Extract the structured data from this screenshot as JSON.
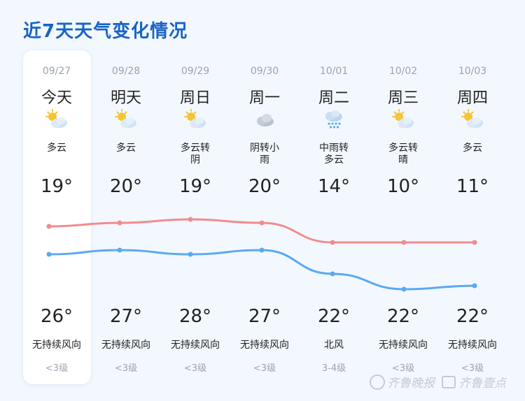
{
  "title": "近7天天气变化情况",
  "days": [
    {
      "date": "09/27",
      "weekday": "今天",
      "icon": "partly-cloudy-icon",
      "cond": [
        "多云"
      ],
      "high": "19°",
      "low": "26°",
      "wind": "无持续风向",
      "level": "<3级",
      "high_val": 19,
      "low_val": 26
    },
    {
      "date": "09/28",
      "weekday": "明天",
      "icon": "partly-cloudy-icon",
      "cond": [
        "多云"
      ],
      "high": "20°",
      "low": "27°",
      "wind": "无持续风向",
      "level": "<3级",
      "high_val": 20,
      "low_val": 27
    },
    {
      "date": "09/29",
      "weekday": "周日",
      "icon": "partly-cloudy-icon",
      "cond": [
        "多云转",
        "阴"
      ],
      "high": "19°",
      "low": "28°",
      "wind": "无持续风向",
      "level": "<3级",
      "high_val": 19,
      "low_val": 28
    },
    {
      "date": "09/30",
      "weekday": "周一",
      "icon": "cloudy-icon",
      "cond": [
        "阴转小",
        "雨"
      ],
      "high": "20°",
      "low": "27°",
      "wind": "无持续风向",
      "level": "<3级",
      "high_val": 20,
      "low_val": 27
    },
    {
      "date": "10/01",
      "weekday": "周二",
      "icon": "rain-icon",
      "cond": [
        "中雨转",
        "多云"
      ],
      "high": "14°",
      "low": "22°",
      "wind": "北风",
      "level": "3-4级",
      "high_val": 14,
      "low_val": 22
    },
    {
      "date": "10/02",
      "weekday": "周三",
      "icon": "partly-cloudy-icon",
      "cond": [
        "多云转",
        "晴"
      ],
      "high": "10°",
      "low": "22°",
      "wind": "无持续风向",
      "level": "<3级",
      "high_val": 10,
      "low_val": 22
    },
    {
      "date": "10/03",
      "weekday": "周四",
      "icon": "partly-cloudy-icon",
      "cond": [
        "多云"
      ],
      "high": "11°",
      "low": "22°",
      "wind": "无持续风向",
      "level": "<3级",
      "high_val": 11,
      "low_val": 22
    }
  ],
  "colors": {
    "upper_line": "#f28b8e",
    "lower_line": "#5aa9f2",
    "title": "#1763c6"
  },
  "watermark": {
    "text1": "齐鲁晚报",
    "text2": "齐鲁壹点"
  }
}
